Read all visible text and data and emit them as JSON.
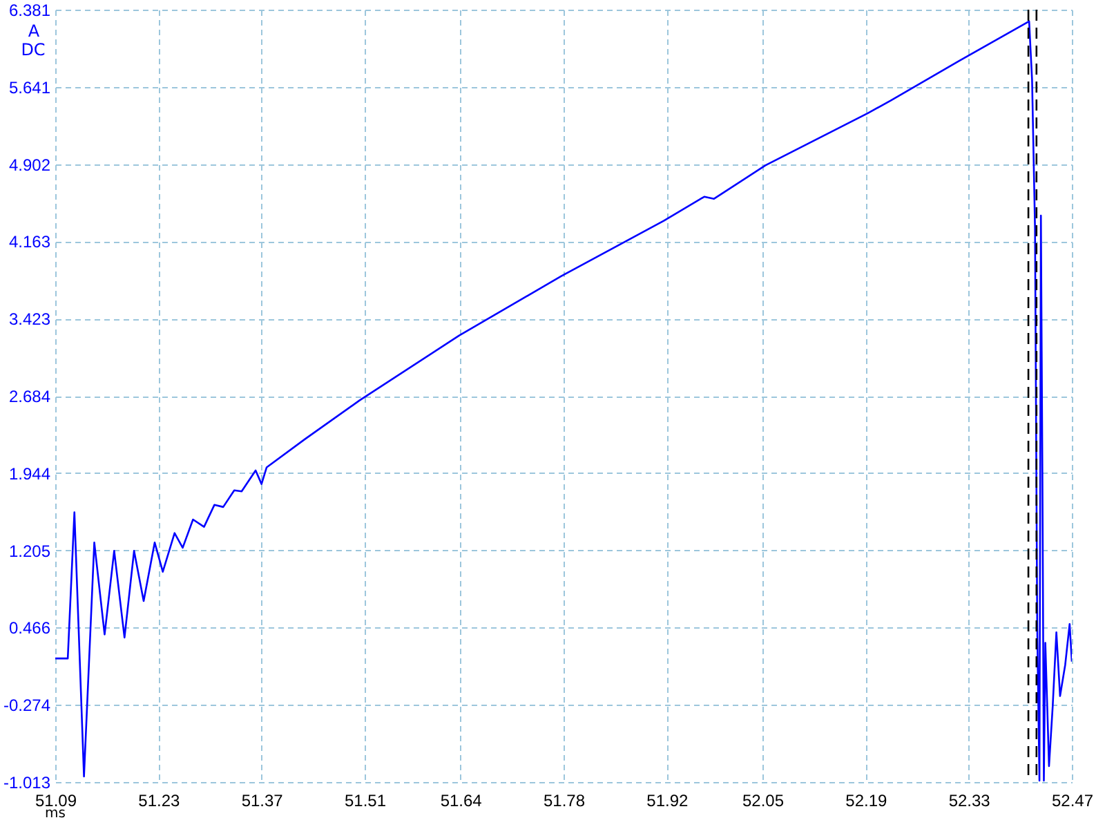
{
  "chart_data": {
    "type": "line",
    "xlabel": "ms",
    "ylabel": "A",
    "annotations": [
      "DC"
    ],
    "xlim": [
      51.09,
      52.47
    ],
    "xticks": [
      51.09,
      51.23,
      51.37,
      51.51,
      51.64,
      51.78,
      51.92,
      52.05,
      52.19,
      52.33,
      52.47
    ],
    "ylim": [
      -1.013,
      6.381
    ],
    "yticks": [
      6.381,
      5.641,
      4.902,
      4.163,
      3.423,
      2.684,
      1.944,
      1.205,
      0.466,
      -0.274,
      -1.013
    ],
    "grid": true,
    "ref_lines": [
      {
        "axis": "x",
        "value": 52.411,
        "color": "#000000",
        "line_style": "dashed"
      },
      {
        "axis": "x",
        "value": 52.422,
        "color": "#000000",
        "line_style": "dashed"
      }
    ],
    "series": [
      {
        "color": "#0000ff",
        "x": [
          51.09,
          51.107,
          51.116,
          51.129,
          51.143,
          51.157,
          51.17,
          51.184,
          51.197,
          51.21,
          51.225,
          51.236,
          51.252,
          51.263,
          51.277,
          51.292,
          51.306,
          51.318,
          51.333,
          51.343,
          51.362,
          51.37,
          51.377,
          51.429,
          51.503,
          51.638,
          51.777,
          51.916,
          51.971,
          51.984,
          52.054,
          52.193,
          52.224,
          52.317,
          52.412,
          52.416,
          52.42,
          52.423,
          52.426,
          52.428,
          52.43,
          52.432,
          52.434,
          52.439,
          52.444,
          52.449,
          52.454,
          52.461,
          52.467,
          52.47
        ],
        "values": [
          0.17,
          0.17,
          1.57,
          -0.96,
          1.28,
          0.4,
          1.2,
          0.37,
          1.2,
          0.72,
          1.28,
          1.0,
          1.37,
          1.23,
          1.5,
          1.43,
          1.64,
          1.62,
          1.78,
          1.77,
          1.97,
          1.84,
          2.0,
          2.27,
          2.64,
          3.26,
          3.83,
          4.36,
          4.59,
          4.57,
          4.89,
          5.39,
          5.51,
          5.89,
          6.27,
          5.71,
          4.29,
          0.47,
          -1.0,
          4.41,
          1.95,
          -1.0,
          0.32,
          -0.86,
          -0.29,
          0.42,
          -0.19,
          0.11,
          0.5,
          0.14
        ]
      }
    ]
  }
}
